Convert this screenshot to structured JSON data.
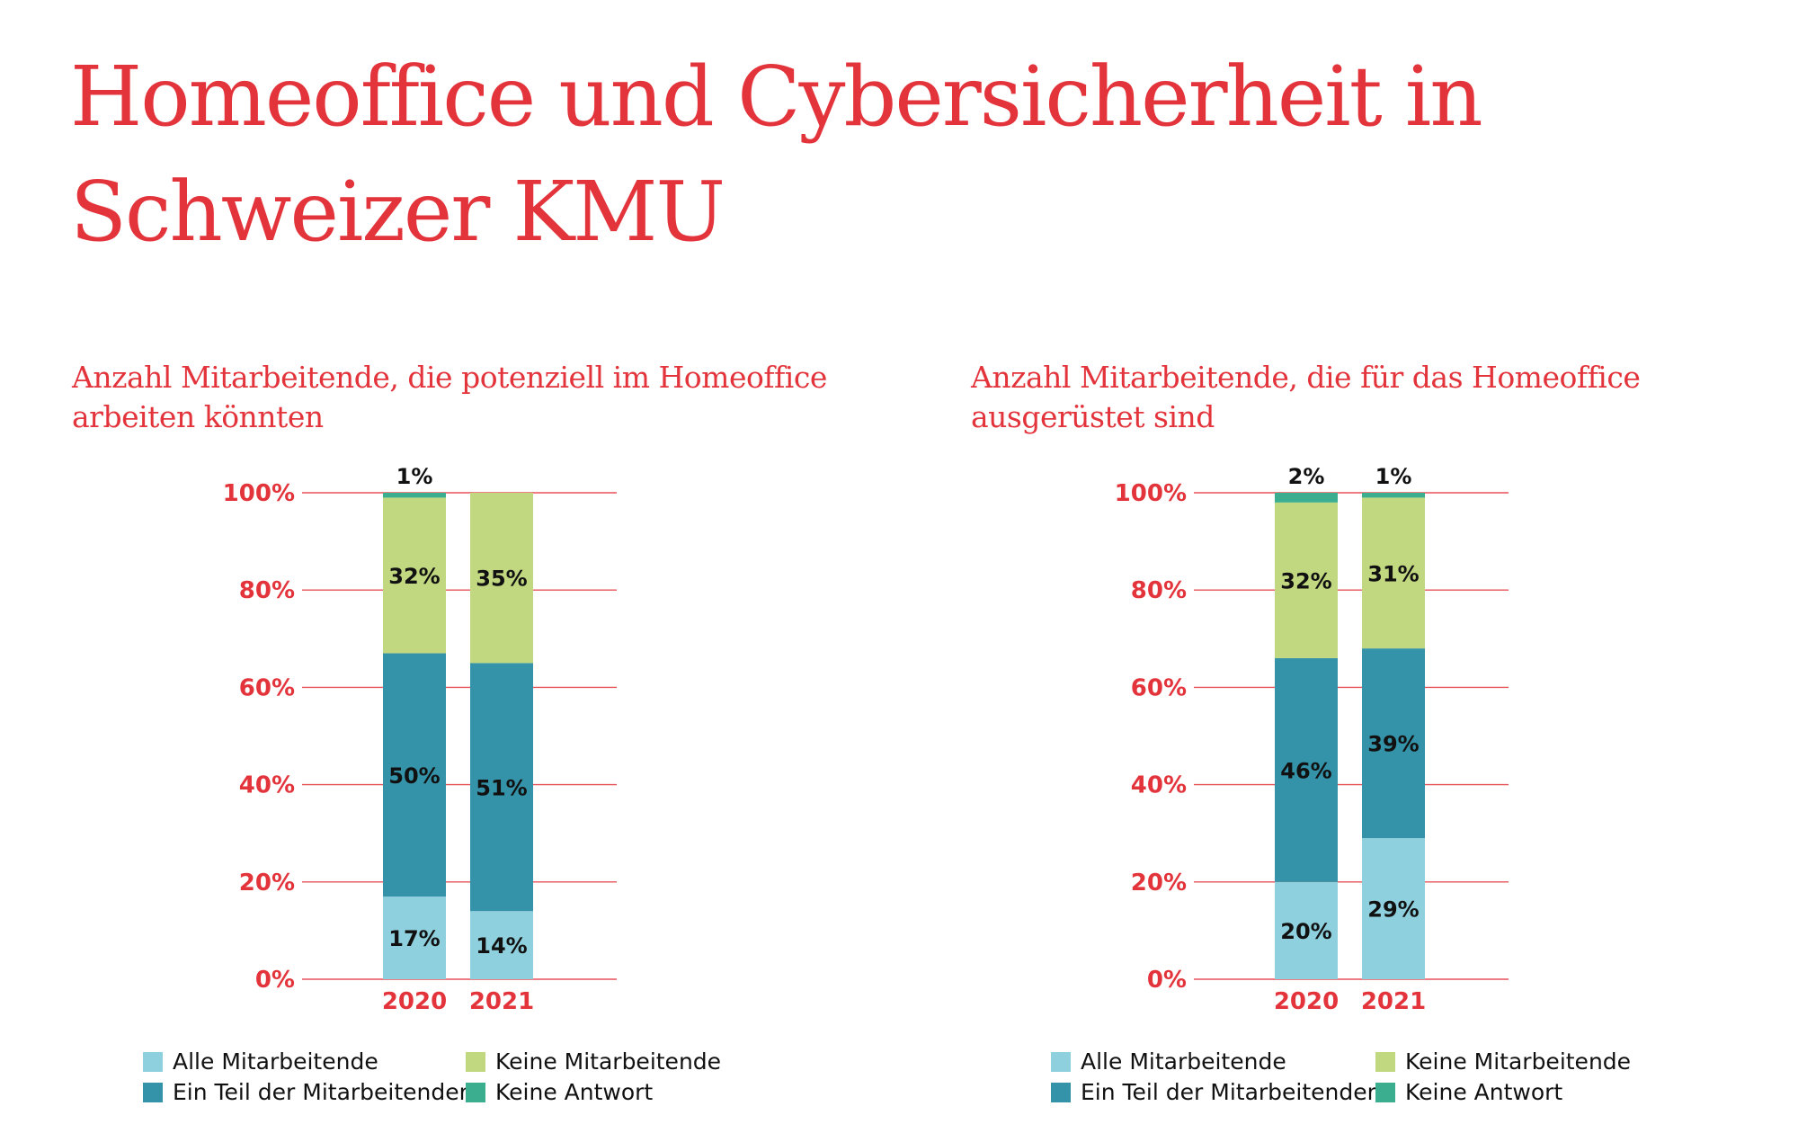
{
  "title_lines": [
    "Homeoffice und Cybersicherheit in",
    "Schweizer KMU"
  ],
  "colors": {
    "accent": "#E3343C",
    "alle": "#8ED0DE",
    "teil": "#3493A8",
    "keine": "#C2D880",
    "antwort": "#3AAE8E"
  },
  "legend": [
    {
      "label": "Alle Mitarbeitende",
      "color": "#8ED0DE"
    },
    {
      "label": "Ein Teil der Mitarbeitenden",
      "color": "#3493A8"
    },
    {
      "label": "Keine Mitarbeitende",
      "color": "#C2D880"
    },
    {
      "label": "Keine Antwort",
      "color": "#3AAE8E"
    }
  ],
  "chart_data": [
    {
      "type": "bar",
      "stacked": true,
      "title_lines": [
        "Anzahl Mitarbeitende, die potenziell im Homeoffice",
        "arbeiten könnten"
      ],
      "categories": [
        "2020",
        "2021"
      ],
      "ylim": [
        0,
        100
      ],
      "yticks": [
        "0%",
        "20%",
        "40%",
        "60%",
        "80%",
        "100%"
      ],
      "grid": true,
      "legend_position": "bottom",
      "series": [
        {
          "name": "Alle Mitarbeitende",
          "values": [
            17,
            14
          ],
          "labels": [
            "17%",
            "14%"
          ]
        },
        {
          "name": "Ein Teil der Mitarbeitenden",
          "values": [
            50,
            51
          ],
          "labels": [
            "50%",
            "51%"
          ]
        },
        {
          "name": "Keine Mitarbeitende",
          "values": [
            32,
            35
          ],
          "labels": [
            "32%",
            "35%"
          ]
        },
        {
          "name": "Keine Antwort",
          "values": [
            1,
            0
          ],
          "labels": [
            "1%",
            ""
          ]
        }
      ]
    },
    {
      "type": "bar",
      "stacked": true,
      "title_lines": [
        "Anzahl Mitarbeitende, die für das Homeoffice",
        "ausgerüstet sind"
      ],
      "categories": [
        "2020",
        "2021"
      ],
      "ylim": [
        0,
        100
      ],
      "yticks": [
        "0%",
        "20%",
        "40%",
        "60%",
        "80%",
        "100%"
      ],
      "grid": true,
      "legend_position": "bottom",
      "series": [
        {
          "name": "Alle Mitarbeitende",
          "values": [
            20,
            29
          ],
          "labels": [
            "20%",
            "29%"
          ]
        },
        {
          "name": "Ein Teil der Mitarbeitenden",
          "values": [
            46,
            39
          ],
          "labels": [
            "46%",
            "39%"
          ]
        },
        {
          "name": "Keine Mitarbeitende",
          "values": [
            32,
            31
          ],
          "labels": [
            "32%",
            "31%"
          ]
        },
        {
          "name": "Keine Antwort",
          "values": [
            2,
            1
          ],
          "labels": [
            "2%",
            "1%"
          ]
        }
      ]
    }
  ]
}
